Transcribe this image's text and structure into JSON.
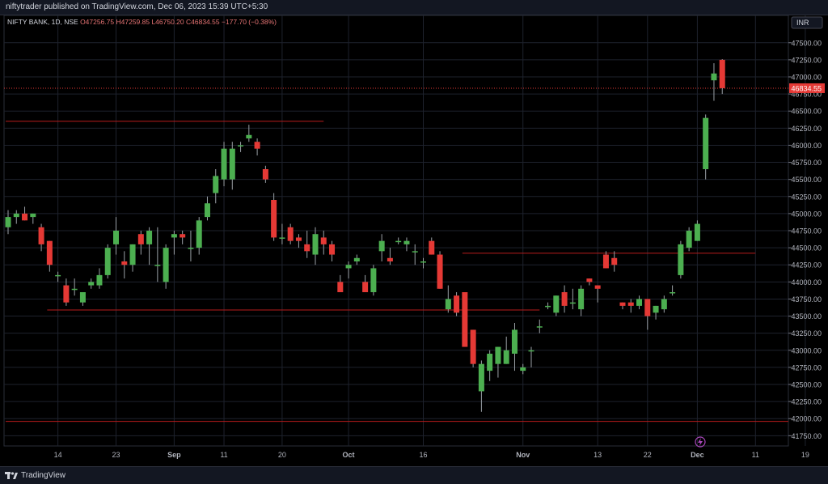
{
  "publisher_line": "niftytrader published on TradingView.com, Dec 06, 2023 15:39 UTC+5:30",
  "footer": {
    "brand": "TradingView"
  },
  "currency_badge": "INR",
  "colors": {
    "up": "#26a69a",
    "up_body": "#4caf50",
    "down": "#e53935",
    "line": "#b71c1c",
    "last_price_bg": "#e53935"
  },
  "chart_data": {
    "type": "candlestick",
    "symbol_line": {
      "symbol": "NIFTY BANK, 1D, NSE",
      "open": "O47256.75",
      "high": "H47259.85",
      "low": "L46750.20",
      "close": "C46834.55",
      "change": "−177.70 (−0.38%)"
    },
    "last_price": 46834.55,
    "last_price_label": "46834.55",
    "ylim": [
      41600,
      47900
    ],
    "y_ticks": [
      "47500.00",
      "47250.00",
      "47000.00",
      "46750.00",
      "46500.00",
      "46250.00",
      "46000.00",
      "45750.00",
      "45500.00",
      "45250.00",
      "45000.00",
      "44750.00",
      "44500.00",
      "44250.00",
      "44000.00",
      "43750.00",
      "43500.00",
      "43250.00",
      "43000.00",
      "42750.00",
      "42500.00",
      "42250.00",
      "42000.00",
      "41750.00"
    ],
    "x_ticks": [
      {
        "label": "14",
        "index": 6
      },
      {
        "label": "23",
        "index": 13
      },
      {
        "label": "Sep",
        "index": 20
      },
      {
        "label": "11",
        "index": 26
      },
      {
        "label": "20",
        "index": 33
      },
      {
        "label": "Oct",
        "index": 41
      },
      {
        "label": "16",
        "index": 50
      },
      {
        "label": "Nov",
        "index": 62
      },
      {
        "label": "13",
        "index": 71
      },
      {
        "label": "22",
        "index": 77
      },
      {
        "label": "Dec",
        "index": 83
      },
      {
        "label": "11",
        "index": 90
      },
      {
        "label": "19",
        "index": 96
      }
    ],
    "candles": [
      [
        44800,
        45050,
        44700,
        44950
      ],
      [
        44950,
        45050,
        44850,
        45000
      ],
      [
        45000,
        45100,
        44900,
        44900
      ],
      [
        44950,
        45000,
        44850,
        45000
      ],
      [
        44800,
        44850,
        44450,
        44550
      ],
      [
        44600,
        44600,
        44150,
        44250
      ],
      [
        44100,
        44150,
        44000,
        44100
      ],
      [
        43950,
        44050,
        43650,
        43700
      ],
      [
        43900,
        44050,
        43800,
        43900
      ],
      [
        43700,
        43800,
        43650,
        43850
      ],
      [
        43950,
        44050,
        43900,
        44000
      ],
      [
        43950,
        44200,
        43900,
        44100
      ],
      [
        44100,
        44550,
        44050,
        44500
      ],
      [
        44550,
        44950,
        44400,
        44750
      ],
      [
        44300,
        44450,
        44050,
        44250
      ],
      [
        44250,
        44550,
        44150,
        44550
      ],
      [
        44700,
        44750,
        44400,
        44550
      ],
      [
        44550,
        44800,
        44250,
        44750
      ],
      [
        44250,
        44800,
        44000,
        44250
      ],
      [
        44000,
        44550,
        43900,
        44500
      ],
      [
        44650,
        44750,
        44400,
        44700
      ],
      [
        44700,
        44750,
        44550,
        44650
      ],
      [
        44500,
        44750,
        44300,
        44500
      ],
      [
        44500,
        44950,
        44400,
        44900
      ],
      [
        44950,
        45250,
        44900,
        45150
      ],
      [
        45300,
        45650,
        45150,
        45550
      ],
      [
        45500,
        46050,
        45400,
        45950
      ],
      [
        45500,
        46050,
        45350,
        45950
      ],
      [
        46000,
        46050,
        45900,
        46000
      ],
      [
        46100,
        46300,
        46050,
        46150
      ],
      [
        46050,
        46100,
        45850,
        45950
      ],
      [
        45650,
        45700,
        45450,
        45500
      ],
      [
        45200,
        45300,
        44600,
        44650
      ],
      [
        44650,
        44850,
        44550,
        44650
      ],
      [
        44800,
        44850,
        44550,
        44600
      ],
      [
        44650,
        44700,
        44500,
        44600
      ],
      [
        44550,
        44750,
        44350,
        44450
      ],
      [
        44400,
        44800,
        44250,
        44700
      ],
      [
        44650,
        44750,
        44400,
        44550
      ],
      [
        44550,
        44600,
        44300,
        44400
      ],
      [
        44000,
        44100,
        43900,
        43850
      ],
      [
        44200,
        44300,
        44050,
        44250
      ],
      [
        44300,
        44400,
        44250,
        44350
      ],
      [
        44000,
        44100,
        43850,
        43850
      ],
      [
        43850,
        44250,
        43800,
        44200
      ],
      [
        44450,
        44700,
        44300,
        44600
      ],
      [
        44350,
        44500,
        44250,
        44300
      ],
      [
        44600,
        44650,
        44550,
        44600
      ],
      [
        44550,
        44650,
        44450,
        44600
      ],
      [
        44450,
        44550,
        44250,
        44450
      ],
      [
        44300,
        44350,
        44200,
        44300
      ],
      [
        44600,
        44650,
        44400,
        44400
      ],
      [
        44400,
        44450,
        43900,
        43900
      ],
      [
        43600,
        43950,
        43550,
        43750
      ],
      [
        43800,
        43850,
        43500,
        43550
      ],
      [
        43850,
        43850,
        43050,
        43050
      ],
      [
        43300,
        43300,
        42750,
        42800
      ],
      [
        42400,
        42850,
        42100,
        42800
      ],
      [
        42700,
        43000,
        42550,
        42950
      ],
      [
        42800,
        43050,
        42600,
        43050
      ],
      [
        42800,
        43200,
        42800,
        43000
      ],
      [
        42950,
        43400,
        42700,
        43300
      ],
      [
        42700,
        42800,
        42650,
        42750
      ],
      [
        43000,
        43050,
        42750,
        43000
      ],
      [
        43350,
        43450,
        43250,
        43350
      ],
      [
        43650,
        43700,
        43600,
        43650
      ],
      [
        43550,
        43800,
        43500,
        43800
      ],
      [
        43850,
        43950,
        43550,
        43650
      ],
      [
        43700,
        43900,
        43600,
        43700
      ],
      [
        43600,
        43950,
        43500,
        43900
      ],
      [
        44050,
        44050,
        43950,
        44000
      ],
      [
        43950,
        43950,
        43700,
        43900
      ],
      [
        44400,
        44450,
        44200,
        44200
      ],
      [
        44350,
        44450,
        44150,
        44250
      ],
      [
        43700,
        43700,
        43600,
        43650
      ],
      [
        43700,
        43750,
        43550,
        43650
      ],
      [
        43650,
        43800,
        43600,
        43750
      ],
      [
        43750,
        43750,
        43300,
        43500
      ],
      [
        43550,
        43650,
        43450,
        43650
      ],
      [
        43600,
        43800,
        43550,
        43750
      ],
      [
        43850,
        43950,
        43800,
        43850
      ],
      [
        44100,
        44600,
        44050,
        44550
      ],
      [
        44500,
        44800,
        44450,
        44750
      ],
      [
        44600,
        44900,
        44600,
        44850
      ],
      [
        45650,
        46450,
        45500,
        46400
      ],
      [
        46950,
        47200,
        46650,
        47050
      ],
      [
        47250,
        47260,
        46750,
        46835
      ]
    ],
    "hlines": [
      {
        "price": 46350,
        "from": 0,
        "to": 38
      },
      {
        "price": 43590,
        "from": 5,
        "to": 64
      },
      {
        "price": 44420,
        "from": 55,
        "to": 90
      },
      {
        "price": 41960,
        "from": 0,
        "to": 94
      }
    ]
  }
}
